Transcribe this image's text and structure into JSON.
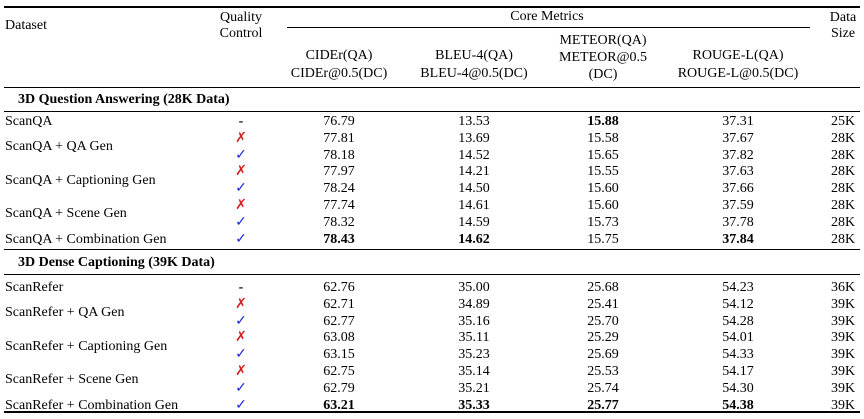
{
  "header": {
    "dataset": "Dataset",
    "quality_control_line1": "Quality",
    "quality_control_line2": "Control",
    "core_metrics": "Core Metrics",
    "data_size_line1": "Data",
    "data_size_line2": "Size",
    "cider_line1": "CIDEr(QA)",
    "cider_line2": "CIDEr@0.5(DC)",
    "bleu_line1": "BLEU-4(QA)",
    "bleu_line2": "BLEU-4@0.5(DC)",
    "meteor_line1": "METEOR(QA)",
    "meteor_line2": "METEOR@0.5",
    "meteor_line3": "(DC)",
    "rouge_line1": "ROUGE-L(QA)",
    "rouge_line2": "ROUGE-L@0.5(DC)"
  },
  "marks": {
    "none": "-",
    "cross": "✗",
    "check": "✓"
  },
  "sections": [
    {
      "title": "3D Question Answering (28K Data)",
      "groups": [
        {
          "name": "ScanQA",
          "rows": [
            {
              "qc": "none",
              "cider": "76.79",
              "bleu": "13.53",
              "meteor": "15.88",
              "rouge": "37.31",
              "size": "25K",
              "bold": [
                "meteor"
              ]
            }
          ]
        },
        {
          "name": "ScanQA + QA Gen",
          "rows": [
            {
              "qc": "cross",
              "cider": "77.81",
              "bleu": "13.69",
              "meteor": "15.58",
              "rouge": "37.67",
              "size": "28K",
              "bold": []
            },
            {
              "qc": "check",
              "cider": "78.18",
              "bleu": "14.52",
              "meteor": "15.65",
              "rouge": "37.82",
              "size": "28K",
              "bold": []
            }
          ]
        },
        {
          "name": "ScanQA + Captioning Gen",
          "rows": [
            {
              "qc": "cross",
              "cider": "77.97",
              "bleu": "14.21",
              "meteor": "15.55",
              "rouge": "37.63",
              "size": "28K",
              "bold": []
            },
            {
              "qc": "check",
              "cider": "78.24",
              "bleu": "14.50",
              "meteor": "15.60",
              "rouge": "37.66",
              "size": "28K",
              "bold": []
            }
          ]
        },
        {
          "name": "ScanQA + Scene Gen",
          "rows": [
            {
              "qc": "cross",
              "cider": "77.74",
              "bleu": "14.61",
              "meteor": "15.60",
              "rouge": "37.59",
              "size": "28K",
              "bold": []
            },
            {
              "qc": "check",
              "cider": "78.32",
              "bleu": "14.59",
              "meteor": "15.73",
              "rouge": "37.78",
              "size": "28K",
              "bold": []
            }
          ]
        },
        {
          "name": "ScanQA + Combination Gen",
          "rows": [
            {
              "qc": "check",
              "cider": "78.43",
              "bleu": "14.62",
              "meteor": "15.75",
              "rouge": "37.84",
              "size": "28K",
              "bold": [
                "cider",
                "bleu",
                "rouge"
              ]
            }
          ]
        }
      ]
    },
    {
      "title": "3D Dense Captioning (39K Data)",
      "groups": [
        {
          "name": "ScanRefer",
          "rows": [
            {
              "qc": "none",
              "cider": "62.76",
              "bleu": "35.00",
              "meteor": "25.68",
              "rouge": "54.23",
              "size": "36K",
              "bold": []
            }
          ]
        },
        {
          "name": "ScanRefer + QA Gen",
          "rows": [
            {
              "qc": "cross",
              "cider": "62.71",
              "bleu": "34.89",
              "meteor": "25.41",
              "rouge": "54.12",
              "size": "39K",
              "bold": []
            },
            {
              "qc": "check",
              "cider": "62.77",
              "bleu": "35.16",
              "meteor": "25.70",
              "rouge": "54.28",
              "size": "39K",
              "bold": []
            }
          ]
        },
        {
          "name": "ScanRefer + Captioning Gen",
          "rows": [
            {
              "qc": "cross",
              "cider": "63.08",
              "bleu": "35.11",
              "meteor": "25.29",
              "rouge": "54.01",
              "size": "39K",
              "bold": []
            },
            {
              "qc": "check",
              "cider": "63.15",
              "bleu": "35.23",
              "meteor": "25.69",
              "rouge": "54.33",
              "size": "39K",
              "bold": []
            }
          ]
        },
        {
          "name": "ScanRefer + Scene Gen",
          "rows": [
            {
              "qc": "cross",
              "cider": "62.75",
              "bleu": "35.14",
              "meteor": "25.53",
              "rouge": "54.17",
              "size": "39K",
              "bold": []
            },
            {
              "qc": "check",
              "cider": "62.79",
              "bleu": "35.21",
              "meteor": "25.74",
              "rouge": "54.30",
              "size": "39K",
              "bold": []
            }
          ]
        },
        {
          "name": "ScanRefer + Combination Gen",
          "rows": [
            {
              "qc": "check",
              "cider": "63.21",
              "bleu": "35.33",
              "meteor": "25.77",
              "rouge": "54.38",
              "size": "39K",
              "bold": [
                "cider",
                "bleu",
                "meteor",
                "rouge"
              ]
            }
          ]
        }
      ]
    }
  ],
  "colors": {
    "cross": "#d61f1f",
    "check": "#1a2bd6"
  }
}
